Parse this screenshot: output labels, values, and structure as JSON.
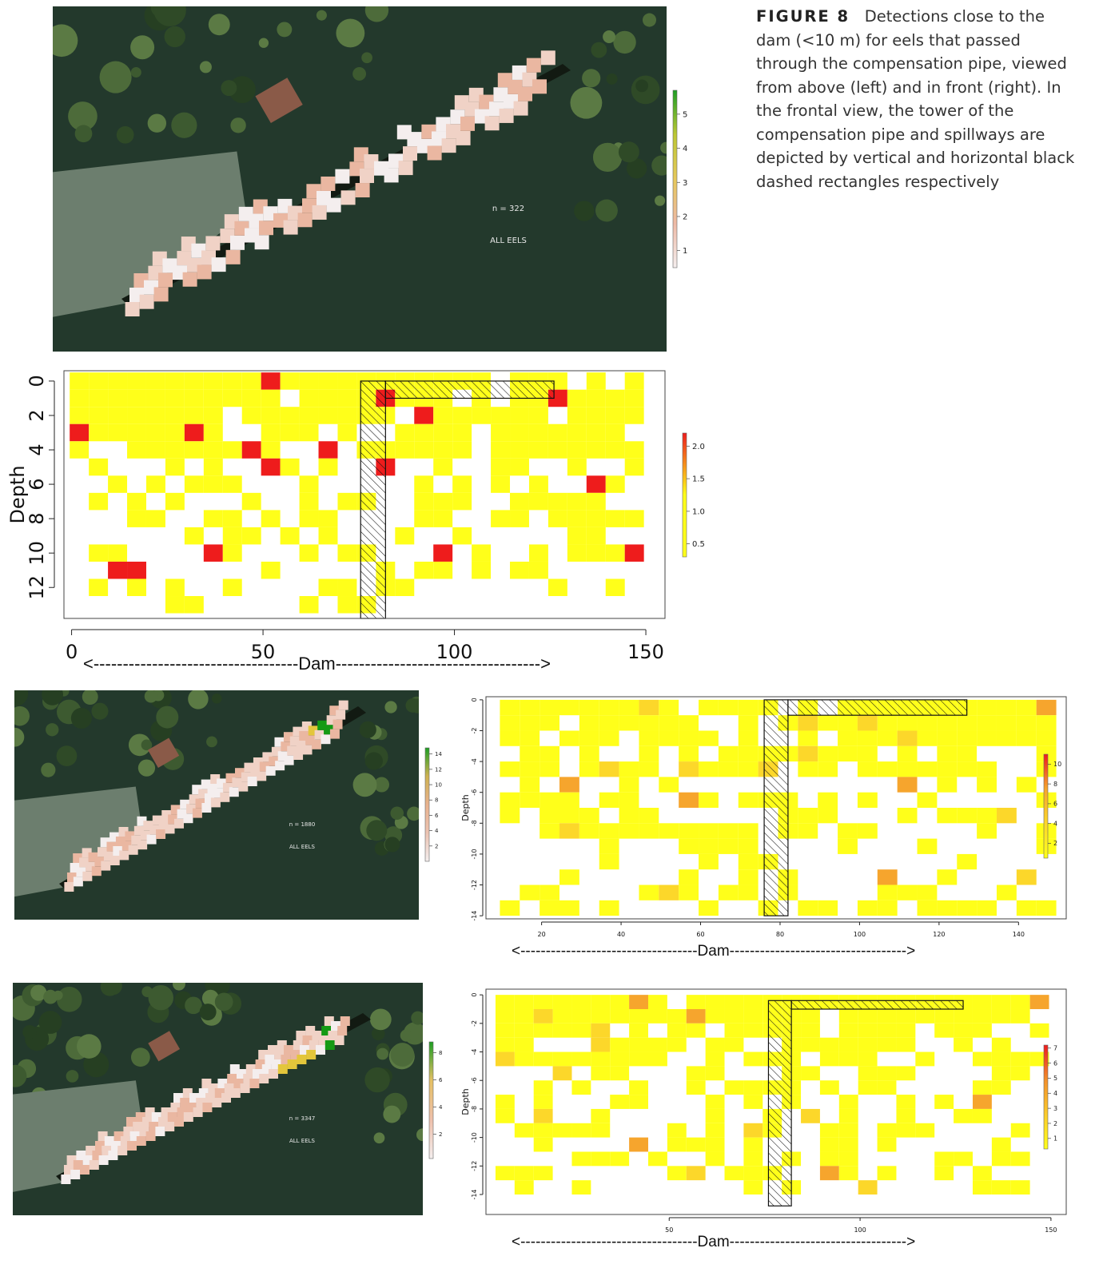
{
  "caption": {
    "label": "FIGURE 8",
    "text": "Detections close to the dam (<10 m) for eels that passed through the compensation pipe, viewed from above (left) and in front (right). In the frontal view, the tower of the compensation pipe and spillways are depicted by vertical and horizontal black dashed rectangles respectively"
  },
  "colors": {
    "water": "#23392c",
    "tree": "#3d5a30",
    "field": "#6c7e6e",
    "hatch": "#111111",
    "red": "#ee1c1c",
    "yellow": "#ffff1a",
    "green": "#149a14",
    "pale": "#f1e6e4"
  },
  "panels": [
    {
      "id": "A",
      "top_view": {
        "n_text": "n = 322",
        "group_text": "ALL EELS",
        "colorbar": {
          "ticks": [
            "1",
            "2",
            "3",
            "4",
            "5"
          ],
          "range": [
            0.5,
            5.7
          ],
          "colors": [
            "#f4eeee",
            "#eeb9a5",
            "#e6c85a",
            "#bcc733",
            "#1d9e23"
          ]
        }
      },
      "chart_data": {
        "type": "heatmap",
        "xlabel": "",
        "ylabel": "Depth",
        "xlim": [
          0,
          152
        ],
        "ylim": [
          0,
          13.5
        ],
        "xticks": [
          "0",
          "50",
          "100",
          "150"
        ],
        "yticks": [
          "0",
          "2",
          "4",
          "6",
          "8",
          "10",
          "12"
        ],
        "ytick_values": [
          0,
          2,
          4,
          6,
          8,
          10,
          12
        ],
        "xtick_values": [
          0,
          50,
          100,
          150
        ],
        "dam_label": "<-----------------------------------Dam----------------------------------->",
        "colorbar": {
          "ticks": [
            "0.5",
            "1.0",
            "1.5",
            "2.0"
          ],
          "range": [
            0.3,
            2.2
          ],
          "colors": [
            "#ffff1a",
            "#ffff1a",
            "#ee1c1c"
          ]
        }
      }
    },
    {
      "id": "B",
      "top_view": {
        "n_text": "n = 1880",
        "group_text": "ALL EELS",
        "colorbar": {
          "ticks": [
            "2",
            "4",
            "6",
            "8",
            "10",
            "12",
            "14"
          ],
          "range": [
            0,
            14.8
          ],
          "colors": [
            "#f4eeee",
            "#ecc3b2",
            "#e9b28e",
            "#cfb250",
            "#1d9e23"
          ]
        }
      },
      "chart_data": {
        "type": "heatmap",
        "xlabel": "",
        "ylabel": "Depth",
        "xlim": [
          6,
          152
        ],
        "ylim": [
          -14,
          0
        ],
        "xticks": [
          "20",
          "40",
          "60",
          "80",
          "100",
          "120",
          "140"
        ],
        "yticks": [
          "0",
          "-2",
          "-4",
          "-6",
          "-8",
          "-10",
          "-12",
          "-14"
        ],
        "ytick_values": [
          0,
          -2,
          -4,
          -6,
          -8,
          -10,
          -12,
          -14
        ],
        "xtick_values": [
          20,
          40,
          60,
          80,
          100,
          120,
          140
        ],
        "dam_label": "<-----------------------------------Dam----------------------------------->",
        "colorbar": {
          "ticks": [
            "2",
            "4",
            "6",
            "8",
            "10"
          ],
          "range": [
            0.5,
            11
          ],
          "colors": [
            "#ffff1a",
            "#fcd72a",
            "#f6a52d",
            "#ee1c1c"
          ]
        }
      }
    },
    {
      "id": "C",
      "top_view": {
        "n_text": "n = 3347",
        "group_text": "ALL EELS",
        "colorbar": {
          "ticks": [
            "2",
            "4",
            "6",
            "8"
          ],
          "range": [
            0.2,
            8.8
          ],
          "colors": [
            "#f4eeee",
            "#eec0ab",
            "#e6c064",
            "#1d9e23"
          ]
        }
      },
      "chart_data": {
        "type": "heatmap",
        "xlabel": "",
        "ylabel": "Depth",
        "xlim": [
          1,
          152
        ],
        "ylim": [
          -15,
          0
        ],
        "xticks": [
          "50",
          "100",
          "150"
        ],
        "yticks": [
          "0",
          "-2",
          "-4",
          "-6",
          "-8",
          "-10",
          "-12",
          "-14"
        ],
        "ytick_values": [
          0,
          -2,
          -4,
          -6,
          -8,
          -10,
          -12,
          -14
        ],
        "xtick_values": [
          50,
          100,
          150
        ],
        "dam_label": "<-----------------------------------Dam----------------------------------->",
        "colorbar": {
          "ticks": [
            "1",
            "2",
            "3",
            "4",
            "5",
            "6",
            "7"
          ],
          "range": [
            0.3,
            7.2
          ],
          "colors": [
            "#ffff1a",
            "#fbcb2b",
            "#f38f2b",
            "#ee1c1c"
          ]
        }
      }
    }
  ]
}
